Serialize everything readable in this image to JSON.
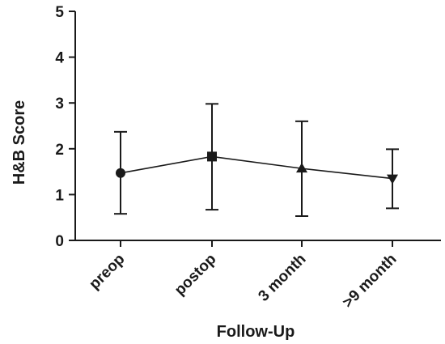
{
  "chart_data": {
    "type": "line",
    "title": "",
    "xlabel": "Follow-Up",
    "ylabel": "H&B Score",
    "categories": [
      "preop",
      "postop",
      "3 month",
      ">9 month"
    ],
    "series": [
      {
        "markers": [
          "circle",
          "square",
          "triangle-up",
          "triangle-down"
        ],
        "values": [
          1.47,
          1.83,
          1.57,
          1.35
        ],
        "error_low": [
          0.58,
          0.67,
          0.53,
          0.7
        ],
        "error_high": [
          2.37,
          2.98,
          2.6,
          1.99
        ],
        "color": "#1a1a1a"
      }
    ],
    "ylim": [
      0,
      5
    ],
    "yticks": [
      0,
      1,
      2,
      3,
      4,
      5
    ],
    "grid": false,
    "legend": "none"
  }
}
